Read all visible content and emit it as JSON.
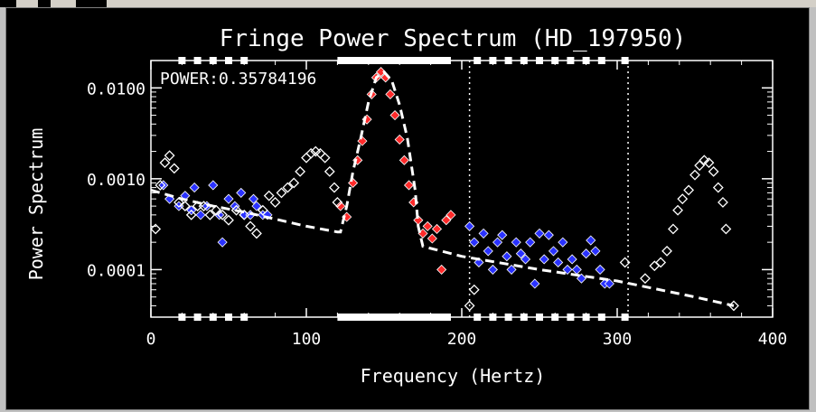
{
  "chart_data": {
    "type": "scatter",
    "title": "Fringe Power Spectrum (HD_197950)",
    "xlabel": "Frequency (Hertz)",
    "ylabel": "Power Spectrum",
    "annotation": "POWER:0.35784196",
    "xlim": [
      0,
      400
    ],
    "ylim": [
      3e-05,
      0.02
    ],
    "yscale": "log",
    "x_ticks": [
      0,
      100,
      200,
      300,
      400
    ],
    "x_tick_labels": [
      "0",
      "100",
      "200",
      "300",
      "400"
    ],
    "y_ticks": [
      0.0001,
      0.001,
      0.01
    ],
    "y_tick_labels": [
      "0.0001",
      "0.0010",
      "0.0100"
    ],
    "grid": false,
    "vlines": [
      205,
      307
    ],
    "colors": {
      "background": "#000000",
      "white": "#ffffff",
      "blue": "#2a32ff",
      "red": "#ff2a2a"
    },
    "series": [
      {
        "color": "blue",
        "marker": "filled-diamond",
        "points": [
          [
            8,
            0.00085
          ],
          [
            12,
            0.0006
          ],
          [
            18,
            0.0005
          ],
          [
            22,
            0.00065
          ],
          [
            26,
            0.00045
          ],
          [
            28,
            0.0008
          ],
          [
            32,
            0.0004
          ],
          [
            36,
            0.0005
          ],
          [
            40,
            0.00085
          ],
          [
            44,
            0.0004
          ],
          [
            46,
            0.0002
          ],
          [
            50,
            0.0006
          ],
          [
            54,
            0.0005
          ],
          [
            58,
            0.0007
          ],
          [
            60,
            0.0004
          ],
          [
            64,
            0.0004
          ],
          [
            66,
            0.0006
          ],
          [
            68,
            0.0005
          ],
          [
            72,
            0.0004
          ],
          [
            75,
            0.0004
          ],
          [
            205,
            0.0003
          ],
          [
            208,
            0.0002
          ],
          [
            211,
            0.00012
          ],
          [
            214,
            0.00025
          ],
          [
            217,
            0.00016
          ],
          [
            220,
            0.0001
          ],
          [
            223,
            0.0002
          ],
          [
            226,
            0.00024
          ],
          [
            229,
            0.00014
          ],
          [
            232,
            0.0001
          ],
          [
            235,
            0.0002
          ],
          [
            238,
            0.00015
          ],
          [
            241,
            0.00013
          ],
          [
            244,
            0.0002
          ],
          [
            247,
            7e-05
          ],
          [
            250,
            0.00025
          ],
          [
            253,
            0.00013
          ],
          [
            256,
            0.00024
          ],
          [
            259,
            0.00016
          ],
          [
            262,
            0.00012
          ],
          [
            265,
            0.0002
          ],
          [
            268,
            0.0001
          ],
          [
            271,
            0.00013
          ],
          [
            274,
            0.0001
          ],
          [
            277,
            8e-05
          ],
          [
            280,
            0.00015
          ],
          [
            283,
            0.00021
          ],
          [
            286,
            0.00016
          ],
          [
            289,
            0.0001
          ],
          [
            292,
            7e-05
          ],
          [
            295,
            7e-05
          ]
        ]
      },
      {
        "color": "red",
        "marker": "filled-diamond",
        "points": [
          [
            122,
            0.0005
          ],
          [
            126,
            0.00038
          ],
          [
            130,
            0.0009
          ],
          [
            133,
            0.0016
          ],
          [
            136,
            0.0026
          ],
          [
            139,
            0.0045
          ],
          [
            142,
            0.0085
          ],
          [
            145,
            0.013
          ],
          [
            148,
            0.015
          ],
          [
            151,
            0.013
          ],
          [
            154,
            0.0085
          ],
          [
            157,
            0.005
          ],
          [
            160,
            0.0027
          ],
          [
            163,
            0.0016
          ],
          [
            166,
            0.00085
          ],
          [
            169,
            0.00055
          ],
          [
            172,
            0.00035
          ],
          [
            175,
            0.00025
          ],
          [
            178,
            0.0003
          ],
          [
            181,
            0.00022
          ],
          [
            184,
            0.00028
          ],
          [
            187,
            0.0001
          ],
          [
            190,
            0.00035
          ],
          [
            193,
            0.0004
          ]
        ]
      },
      {
        "color": "white",
        "marker": "open-diamond",
        "points": [
          [
            3,
            0.00028
          ],
          [
            6,
            0.00085
          ],
          [
            9,
            0.0015
          ],
          [
            12,
            0.0018
          ],
          [
            15,
            0.0013
          ],
          [
            18,
            0.00055
          ],
          [
            22,
            0.0005
          ],
          [
            26,
            0.0004
          ],
          [
            30,
            0.0005
          ],
          [
            34,
            0.0005
          ],
          [
            38,
            0.0004
          ],
          [
            42,
            0.00045
          ],
          [
            46,
            0.0004
          ],
          [
            50,
            0.00035
          ],
          [
            55,
            0.00045
          ],
          [
            60,
            0.0004
          ],
          [
            64,
            0.0003
          ],
          [
            68,
            0.00025
          ],
          [
            72,
            0.00045
          ],
          [
            76,
            0.00065
          ],
          [
            80,
            0.00055
          ],
          [
            84,
            0.0007
          ],
          [
            88,
            0.0008
          ],
          [
            92,
            0.0009
          ],
          [
            96,
            0.0012
          ],
          [
            100,
            0.0017
          ],
          [
            103,
            0.0019
          ],
          [
            106,
            0.002
          ],
          [
            109,
            0.0019
          ],
          [
            112,
            0.0017
          ],
          [
            115,
            0.0012
          ],
          [
            118,
            0.0008
          ],
          [
            120,
            0.00055
          ],
          [
            205,
            4e-05
          ],
          [
            208,
            6e-05
          ],
          [
            305,
            0.00012
          ],
          [
            318,
            8e-05
          ],
          [
            324,
            0.00011
          ],
          [
            328,
            0.00012
          ],
          [
            332,
            0.00016
          ],
          [
            336,
            0.00028
          ],
          [
            339,
            0.00045
          ],
          [
            342,
            0.0006
          ],
          [
            346,
            0.00075
          ],
          [
            350,
            0.0011
          ],
          [
            353,
            0.0014
          ],
          [
            356,
            0.0016
          ],
          [
            359,
            0.0015
          ],
          [
            362,
            0.0012
          ],
          [
            365,
            0.0008
          ],
          [
            368,
            0.00055
          ],
          [
            370,
            0.00028
          ],
          [
            375,
            4e-05
          ]
        ]
      }
    ],
    "fit_line": {
      "style": "dashed",
      "points": [
        [
          0,
          0.00075
        ],
        [
          20,
          0.0006
        ],
        [
          40,
          0.0005
        ],
        [
          60,
          0.00043
        ],
        [
          80,
          0.00036
        ],
        [
          100,
          0.0003
        ],
        [
          120,
          0.00026
        ],
        [
          122,
          0.00026
        ],
        [
          126,
          0.0005
        ],
        [
          130,
          0.0012
        ],
        [
          135,
          0.0028
        ],
        [
          140,
          0.007
        ],
        [
          145,
          0.013
        ],
        [
          150,
          0.015
        ],
        [
          155,
          0.012
        ],
        [
          160,
          0.0065
        ],
        [
          165,
          0.0028
        ],
        [
          170,
          0.00075
        ],
        [
          172,
          0.0003
        ],
        [
          175,
          0.00018
        ],
        [
          200,
          0.00014
        ],
        [
          250,
          0.0001
        ],
        [
          300,
          7.5e-05
        ],
        [
          350,
          5e-05
        ],
        [
          375,
          4e-05
        ]
      ]
    },
    "tick_bars": {
      "bottom_segments": [
        [
          120,
          193
        ]
      ],
      "top_segments": [
        [
          120,
          193
        ]
      ],
      "bottom_squares": [
        20,
        30,
        40,
        50,
        60,
        210,
        220,
        230,
        240,
        250,
        260,
        270,
        280,
        290,
        305
      ],
      "top_squares": [
        20,
        30,
        40,
        50,
        60,
        210,
        220,
        230,
        240,
        250,
        260,
        270,
        280,
        290,
        305
      ]
    }
  }
}
